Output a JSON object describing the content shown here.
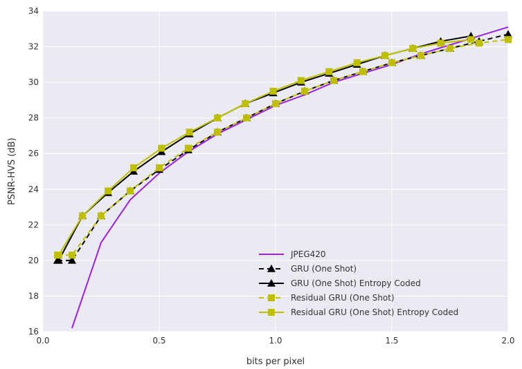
{
  "chart_data": {
    "type": "line",
    "title": "",
    "xlabel": "bits per pixel",
    "ylabel": "PSNR-HVS (dB)",
    "xlim": [
      0.0,
      2.0
    ],
    "ylim": [
      16,
      34
    ],
    "xticks": [
      0.0,
      0.5,
      1.0,
      1.5,
      2.0
    ],
    "xtick_labels": [
      "0.0",
      "0.5",
      "1.0",
      "1.5",
      "2.0"
    ],
    "yticks": [
      16,
      18,
      20,
      22,
      24,
      26,
      28,
      30,
      32,
      34
    ],
    "ytick_labels": [
      "16",
      "18",
      "20",
      "22",
      "24",
      "26",
      "28",
      "30",
      "32",
      "34"
    ],
    "grid": true,
    "legend_position": "bottom-right",
    "series": [
      {
        "name": "JPEG420",
        "color": "#9b1fe8",
        "line_style": "solid",
        "marker": "none",
        "x": [
          0.125,
          0.25,
          0.375,
          0.5,
          0.625,
          0.75,
          0.875,
          1.0,
          1.125,
          1.25,
          1.375,
          1.5,
          1.625,
          1.75,
          1.875,
          2.0
        ],
        "y": [
          16.2,
          21.0,
          23.4,
          24.9,
          26.1,
          27.1,
          27.9,
          28.7,
          29.3,
          30.0,
          30.5,
          31.0,
          31.6,
          32.1,
          32.6,
          33.1
        ]
      },
      {
        "name": "GRU (One Shot)",
        "color": "#000000",
        "line_style": "dashed",
        "marker": "triangle",
        "x": [
          0.0625,
          0.125,
          0.25,
          0.375,
          0.5,
          0.625,
          0.75,
          0.875,
          1.0,
          1.125,
          1.25,
          1.375,
          1.5,
          1.625,
          1.75,
          1.875,
          2.0
        ],
        "y": [
          20.0,
          20.0,
          22.5,
          23.9,
          25.1,
          26.2,
          27.2,
          28.0,
          28.8,
          29.5,
          30.1,
          30.6,
          31.1,
          31.5,
          31.9,
          32.3,
          32.7
        ]
      },
      {
        "name": "GRU (One Shot) Entropy Coded",
        "color": "#000000",
        "line_style": "solid",
        "marker": "triangle",
        "x": [
          0.068,
          0.17,
          0.28,
          0.39,
          0.51,
          0.63,
          0.75,
          0.87,
          0.99,
          1.11,
          1.23,
          1.35,
          1.47,
          1.59,
          1.71,
          1.84
        ],
        "y": [
          20.0,
          22.5,
          23.8,
          25.0,
          26.1,
          27.1,
          28.0,
          28.8,
          29.4,
          30.0,
          30.5,
          31.0,
          31.5,
          31.9,
          32.3,
          32.6
        ]
      },
      {
        "name": "Residual GRU (One Shot)",
        "color": "#bfbf00",
        "line_style": "dashed",
        "marker": "square",
        "x": [
          0.0625,
          0.125,
          0.25,
          0.375,
          0.5,
          0.625,
          0.75,
          0.875,
          1.0,
          1.125,
          1.25,
          1.375,
          1.5,
          1.625,
          1.75,
          1.875,
          2.0
        ],
        "y": [
          20.3,
          20.3,
          22.5,
          23.9,
          25.2,
          26.3,
          27.2,
          28.0,
          28.8,
          29.5,
          30.1,
          30.6,
          31.1,
          31.5,
          31.9,
          32.2,
          32.4
        ]
      },
      {
        "name": "Residual GRU (One Shot) Entropy Coded",
        "color": "#bfbf00",
        "line_style": "solid",
        "marker": "square",
        "x": [
          0.068,
          0.17,
          0.28,
          0.39,
          0.51,
          0.63,
          0.75,
          0.87,
          0.99,
          1.11,
          1.23,
          1.35,
          1.47,
          1.59,
          1.71,
          1.84
        ],
        "y": [
          20.3,
          22.5,
          23.9,
          25.2,
          26.3,
          27.2,
          28.0,
          28.8,
          29.5,
          30.1,
          30.6,
          31.1,
          31.5,
          31.9,
          32.2,
          32.4
        ]
      }
    ]
  }
}
